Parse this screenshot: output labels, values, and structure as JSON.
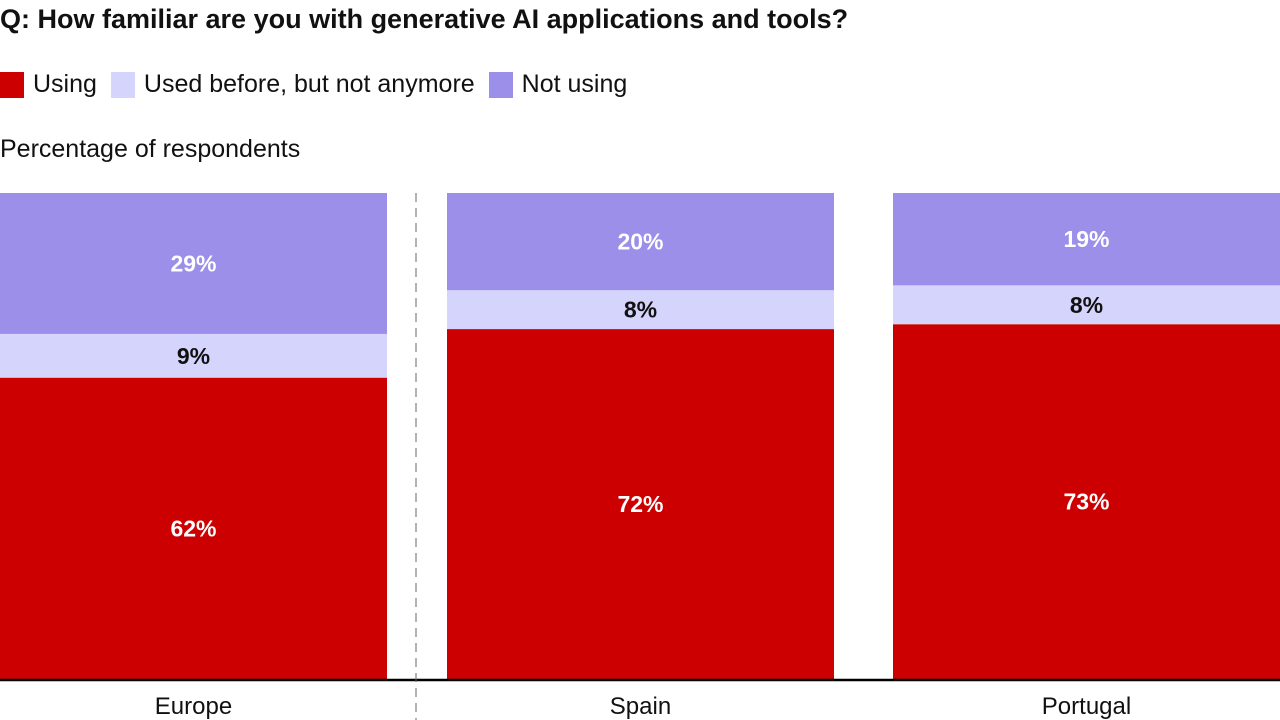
{
  "chart_data": {
    "type": "bar",
    "stacked": true,
    "title": "Q: How familiar are you with generative AI applications and tools?",
    "ylabel": "Percentage of respondents",
    "categories": [
      "Europe",
      "Spain",
      "Portugal"
    ],
    "series": [
      {
        "name": "Using",
        "color": "#cc0000",
        "label_color": "#ffffff",
        "values": [
          62,
          72,
          73
        ],
        "labels": [
          "62%",
          "72%",
          "73%"
        ]
      },
      {
        "name": "Used before, but not anymore",
        "color": "#d4d4fc",
        "label_color": "#111111",
        "values": [
          9,
          8,
          8
        ],
        "labels": [
          "9%",
          "8%",
          "8%"
        ]
      },
      {
        "name": "Not using",
        "color": "#9b8fea",
        "label_color": "#ffffff",
        "values": [
          29,
          20,
          19
        ],
        "labels": [
          "29%",
          "20%",
          "19%"
        ]
      }
    ],
    "ylim": [
      0,
      100
    ],
    "grid": false,
    "legend_position": "top-left",
    "separator_after": "Europe"
  }
}
